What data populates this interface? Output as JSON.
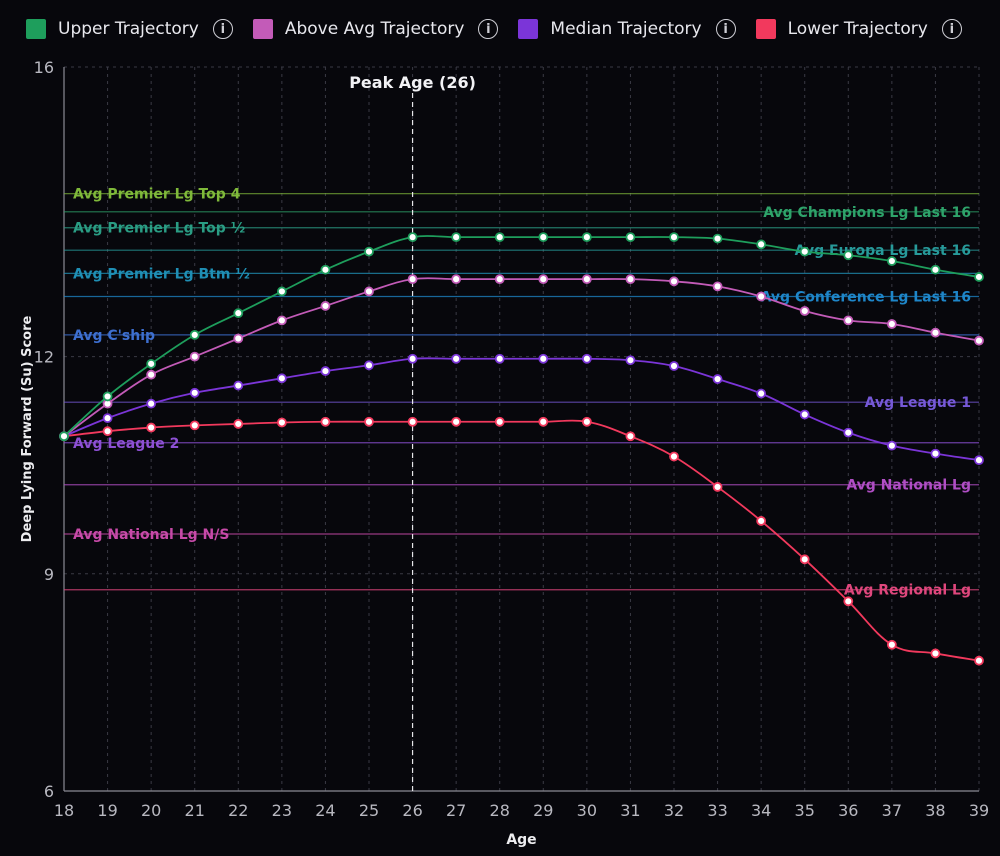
{
  "legend": [
    {
      "label": "Upper Trajectory",
      "color": "#1e9e5c",
      "info_icon": "info-icon"
    },
    {
      "label": "Above Avg Trajectory",
      "color": "#c35bb8",
      "info_icon": "info-icon"
    },
    {
      "label": "Median Trajectory",
      "color": "#7b35d8",
      "info_icon": "info-icon"
    },
    {
      "label": "Lower Trajectory",
      "color": "#f2395d",
      "info_icon": "info-icon"
    }
  ],
  "chart_data": {
    "type": "line",
    "xlabel": "Age",
    "ylabel": "Deep Lying Forward (Su) Score",
    "x": [
      18,
      19,
      20,
      21,
      22,
      23,
      24,
      25,
      26,
      27,
      28,
      29,
      30,
      31,
      32,
      33,
      34,
      35,
      36,
      37,
      38,
      39
    ],
    "xlim": [
      18,
      39
    ],
    "ylim": [
      6,
      16
    ],
    "yticks": [
      6,
      9,
      12,
      16
    ],
    "grid": true,
    "legend_position": "top",
    "series": [
      {
        "name": "Upper Trajectory",
        "color": "#1e9e5c",
        "values": [
          10.9,
          11.45,
          11.9,
          12.3,
          12.6,
          12.9,
          13.2,
          13.45,
          13.65,
          13.65,
          13.65,
          13.65,
          13.65,
          13.65,
          13.65,
          13.63,
          13.55,
          13.45,
          13.4,
          13.32,
          13.2,
          13.1
        ]
      },
      {
        "name": "Above Avg Trajectory",
        "color": "#c35bb8",
        "values": [
          10.9,
          11.35,
          11.75,
          12.0,
          12.25,
          12.5,
          12.7,
          12.9,
          13.07,
          13.07,
          13.07,
          13.07,
          13.07,
          13.07,
          13.04,
          12.97,
          12.83,
          12.63,
          12.5,
          12.45,
          12.33,
          12.22
        ]
      },
      {
        "name": "Median Trajectory",
        "color": "#7b35d8",
        "values": [
          10.9,
          11.15,
          11.35,
          11.5,
          11.6,
          11.7,
          11.8,
          11.88,
          11.97,
          11.97,
          11.97,
          11.97,
          11.97,
          11.95,
          11.87,
          11.69,
          11.49,
          11.2,
          10.95,
          10.77,
          10.66,
          10.57
        ]
      },
      {
        "name": "Lower Trajectory",
        "color": "#f2395d",
        "values": [
          10.9,
          10.97,
          11.02,
          11.05,
          11.07,
          11.09,
          11.1,
          11.1,
          11.1,
          11.1,
          11.1,
          11.1,
          11.1,
          10.9,
          10.62,
          10.2,
          9.73,
          9.2,
          8.62,
          8.02,
          7.9,
          7.8
        ]
      }
    ],
    "reference_lines": [
      {
        "label": "Avg Premier Lg Top 4",
        "value": 14.25,
        "color": "#7fb93a",
        "label_side": "left"
      },
      {
        "label": "Avg Champions Lg Last 16",
        "value": 14.0,
        "color": "#2ea36a",
        "label_side": "right"
      },
      {
        "label": "Avg Premier Lg Top ½",
        "value": 13.78,
        "color": "#2a9d84",
        "label_side": "left"
      },
      {
        "label": "Avg Europa Lg Last 16",
        "value": 13.47,
        "color": "#279a9a",
        "label_side": "right"
      },
      {
        "label": "Avg Premier Lg Btm ½",
        "value": 13.15,
        "color": "#1f8fb5",
        "label_side": "left"
      },
      {
        "label": "Avg Conference Lg Last 16",
        "value": 12.83,
        "color": "#1e86c9",
        "label_side": "right"
      },
      {
        "label": "Avg C'ship",
        "value": 12.3,
        "color": "#3d6fd0",
        "label_side": "left"
      },
      {
        "label": "Avg League 1",
        "value": 11.37,
        "color": "#7659d8",
        "label_side": "right"
      },
      {
        "label": "Avg League 2",
        "value": 10.81,
        "color": "#8d50d4",
        "label_side": "left"
      },
      {
        "label": "Avg National Lg",
        "value": 10.23,
        "color": "#b04ec5",
        "label_side": "right"
      },
      {
        "label": "Avg National Lg N/S",
        "value": 9.55,
        "color": "#c74aa8",
        "label_side": "left"
      },
      {
        "label": "Avg Regional Lg",
        "value": 8.78,
        "color": "#e0477d",
        "label_side": "right"
      }
    ],
    "annotations": [
      {
        "label": "Peak Age (26)",
        "x": 26
      }
    ]
  }
}
